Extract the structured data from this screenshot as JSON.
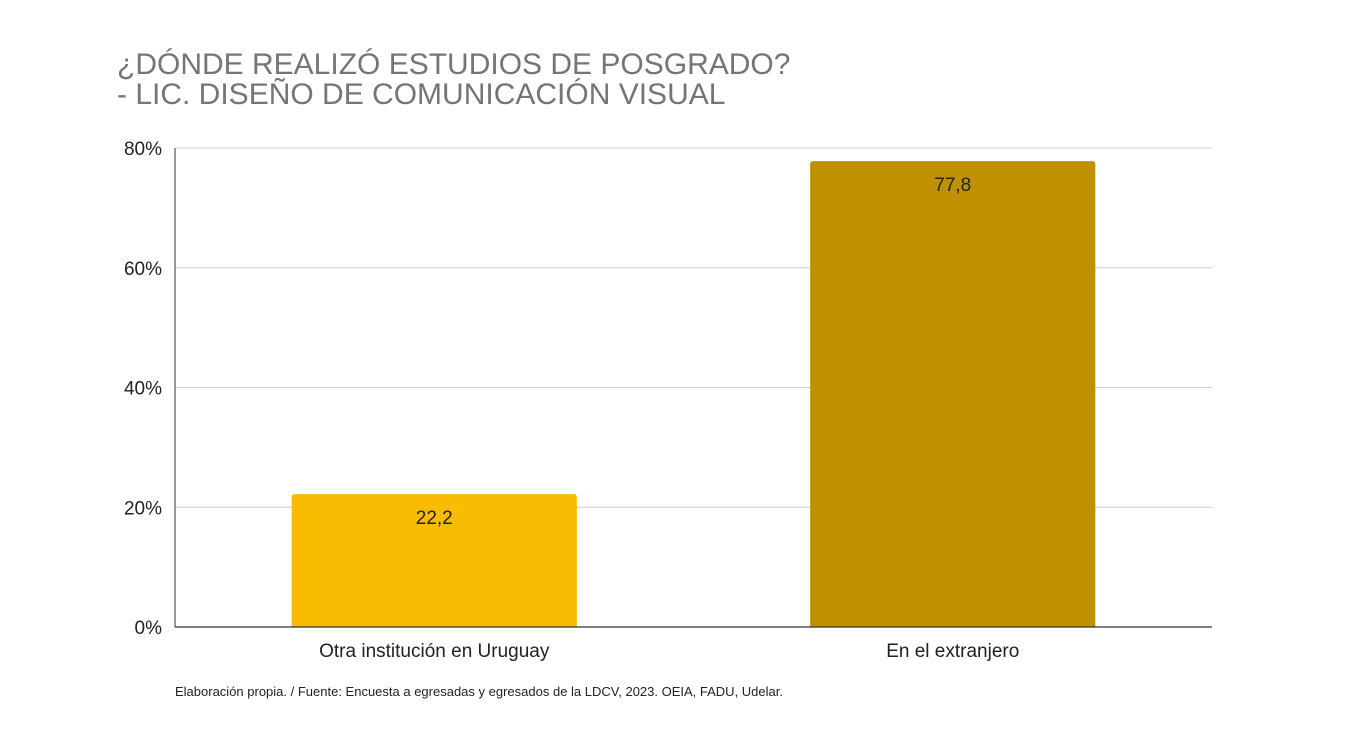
{
  "chart_data": {
    "type": "bar",
    "title_lines": [
      "¿DÓNDE REALIZÓ ESTUDIOS DE POSGRADO?",
      "- LIC. DISEÑO DE COMUNICACIÓN VISUAL"
    ],
    "categories": [
      "Otra institución en Uruguay",
      "En el extranjero"
    ],
    "values": [
      22.2,
      77.8
    ],
    "data_labels": [
      "22,2",
      "77,8"
    ],
    "bar_colors": [
      "#f9bc02",
      "#bf9000"
    ],
    "ylim": [
      0,
      80
    ],
    "yticks": [
      0,
      20,
      40,
      60,
      80
    ],
    "ytick_labels": [
      "0%",
      "20%",
      "40%",
      "60%",
      "80%"
    ],
    "grid": true,
    "legend": "none",
    "xlabel": "",
    "ylabel": ""
  },
  "footnote": "Elaboración propia. / Fuente: Encuesta a egresadas y egresados de la LDCV, 2023. OEIA, FADU, Udelar."
}
